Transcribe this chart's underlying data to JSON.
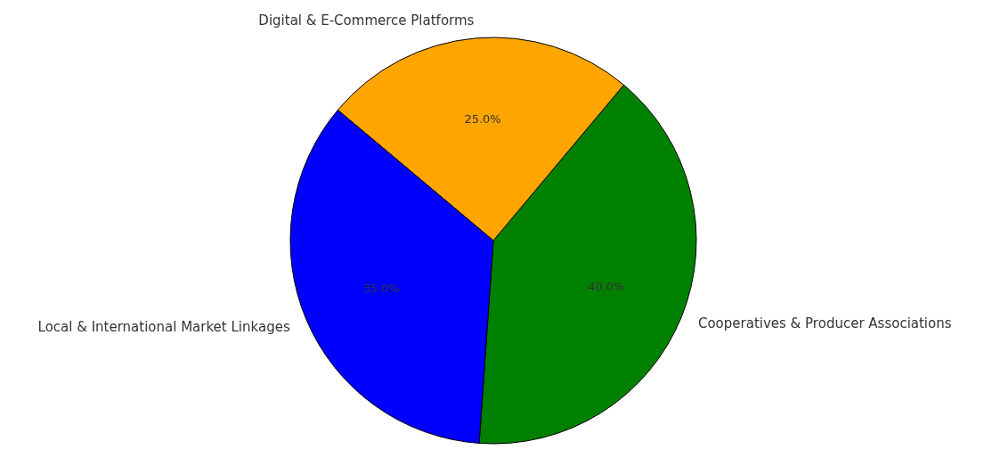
{
  "chart_data": {
    "type": "pie",
    "categories": [
      "Cooperatives & Producer Associations",
      "Digital & E-Commerce Platforms",
      "Local & International Market Linkages"
    ],
    "values": [
      40,
      25,
      35
    ],
    "colors": [
      "#008000",
      "#ffa500",
      "#0000ff"
    ],
    "value_labels": [
      "40.0%",
      "25.0%",
      "35.0%"
    ],
    "legend": false
  }
}
